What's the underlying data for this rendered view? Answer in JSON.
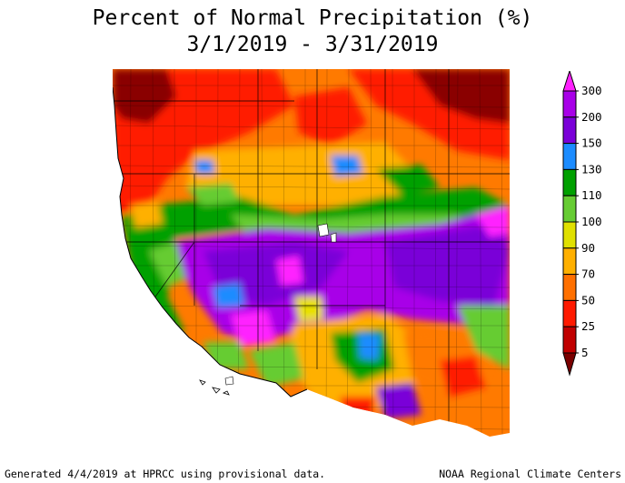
{
  "title": "Percent of Normal Precipitation (%)",
  "subtitle": "3/1/2019 - 3/31/2019",
  "footer_left": "Generated 4/4/2019 at HPRCC using provisional data.",
  "footer_right": "NOAA Regional Climate Centers",
  "legend": {
    "labels": [
      "300",
      "200",
      "150",
      "130",
      "110",
      "100",
      "90",
      "70",
      "50",
      "25",
      "5"
    ],
    "colors": [
      "#ff20ff",
      "#a800e8",
      "#7a00d8",
      "#1c8cff",
      "#00a000",
      "#66cc33",
      "#e0e000",
      "#ffb000",
      "#ff7000",
      "#ff1a00",
      "#c00000",
      "#7a0000"
    ]
  },
  "map_colors": {
    "dark_red": "#8a0000",
    "red": "#ff1a00",
    "orange": "#ff7a00",
    "light_orange": "#ffb000",
    "yellow": "#e8e000",
    "light_green": "#66cc33",
    "green": "#00a000",
    "blue": "#1c8cff",
    "purple": "#7a00d8",
    "violet": "#a800e8",
    "magenta": "#ff20ff"
  }
}
